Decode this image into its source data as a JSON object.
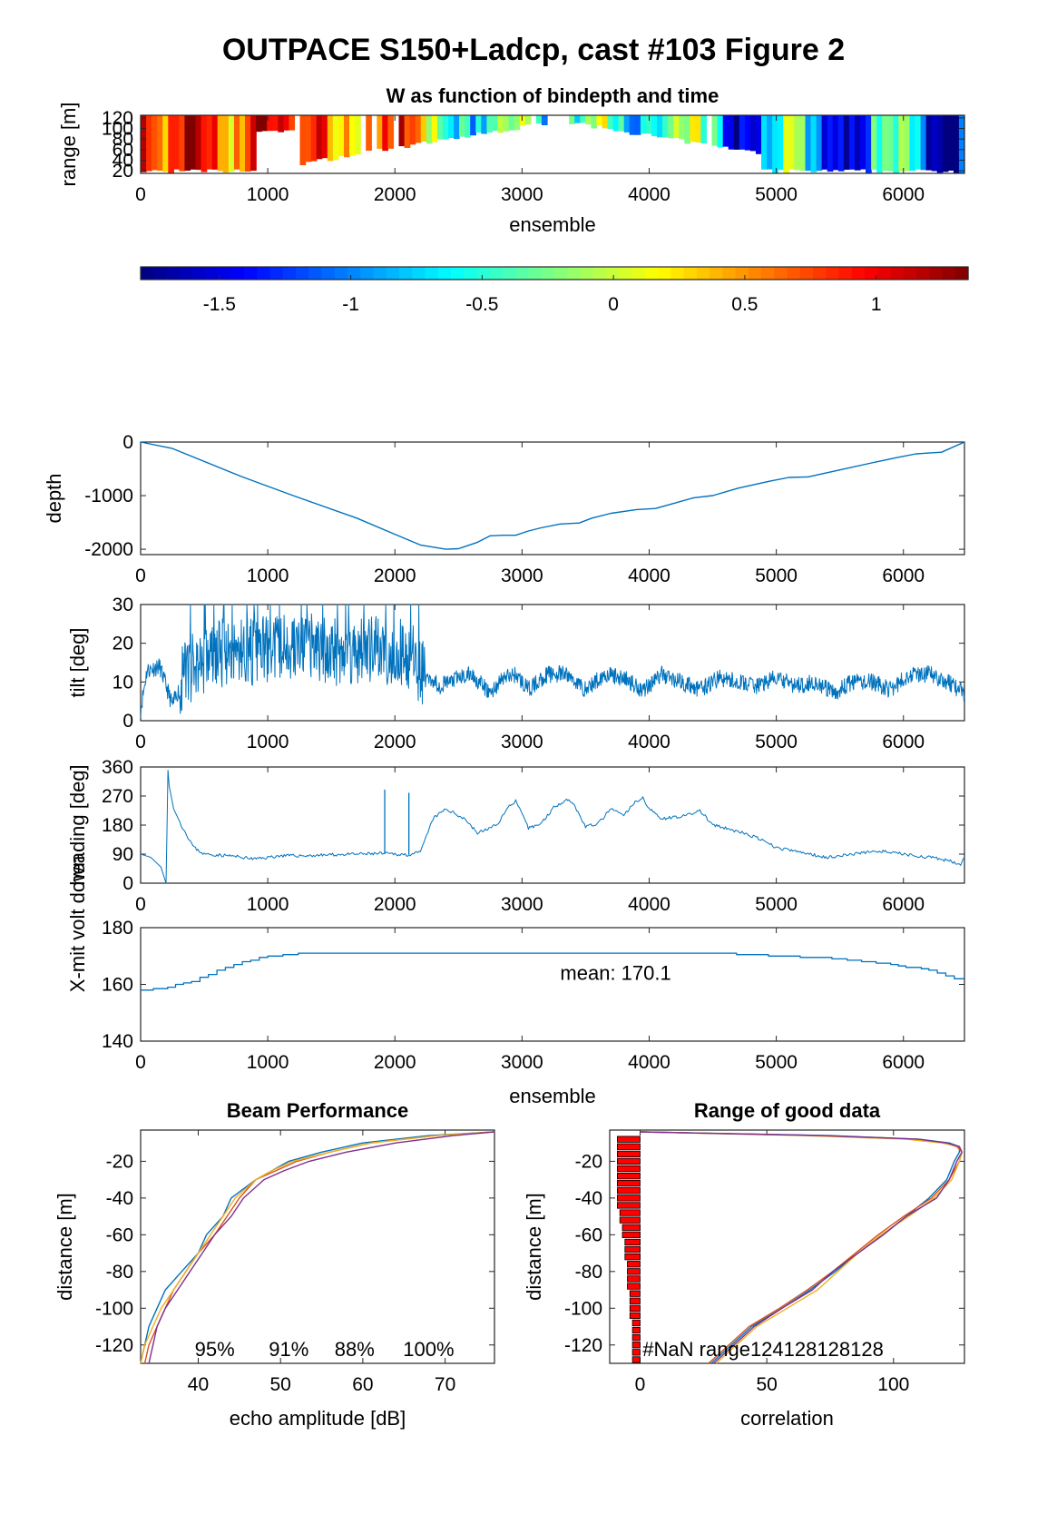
{
  "figure": {
    "title": "OUTPACE S150+Ladcp, cast #103 Figure 2"
  },
  "colors": {
    "line": "#0072BD",
    "beam1": "#0072BD",
    "beam2": "#D95319",
    "beam3": "#EDB120",
    "beam4": "#7E2F8E",
    "bar": "#FF0000"
  },
  "chart_data": [
    {
      "id": "w_image",
      "type": "heatmap",
      "title": "W as function of bindepth and time",
      "xlabel": "ensemble",
      "ylabel": "range [m]",
      "xlim": [
        0,
        6480
      ],
      "ylim": [
        15,
        125
      ],
      "xticks": [
        0,
        1000,
        2000,
        3000,
        4000,
        5000,
        6000
      ],
      "yticks": [
        20,
        40,
        60,
        80,
        100,
        120
      ],
      "colormap": "jet",
      "clim": [
        -1.8,
        1.35
      ],
      "note": "vertical stripes of W values; white where no data"
    },
    {
      "id": "colorbar",
      "type": "colorbar",
      "colormap": "jet",
      "range": [
        -1.8,
        1.35
      ],
      "ticks": [
        -1.5,
        -1,
        -0.5,
        0,
        0.5,
        1
      ],
      "tick_labels": [
        "-1.5",
        "-1",
        "-0.5",
        "0",
        "0.5",
        "1"
      ]
    },
    {
      "id": "depth",
      "type": "line",
      "ylabel": "depth",
      "xlim": [
        0,
        6480
      ],
      "ylim": [
        -2100,
        0
      ],
      "xticks": [
        0,
        1000,
        2000,
        3000,
        4000,
        5000,
        6000
      ],
      "yticks": [
        0,
        -1000,
        -2000
      ],
      "x": [
        0,
        250,
        800,
        1200,
        1700,
        2000,
        2200,
        2400,
        2500,
        2650,
        2750,
        2850,
        2950,
        3050,
        3150,
        3300,
        3450,
        3550,
        3700,
        3900,
        4050,
        4200,
        4350,
        4500,
        4700,
        4950,
        5100,
        5250,
        5500,
        5750,
        5950,
        6100,
        6300,
        6480
      ],
      "y": [
        0,
        -120,
        -650,
        -1000,
        -1420,
        -1720,
        -1920,
        -2000,
        -1990,
        -1870,
        -1750,
        -1740,
        -1740,
        -1660,
        -1600,
        -1530,
        -1510,
        -1420,
        -1330,
        -1260,
        -1240,
        -1140,
        -1040,
        -1000,
        -860,
        -730,
        -660,
        -650,
        -520,
        -390,
        -290,
        -220,
        -190,
        0
      ]
    },
    {
      "id": "tilt",
      "type": "line",
      "ylabel": "tilt [deg]",
      "xlim": [
        0,
        6480
      ],
      "ylim": [
        0,
        30
      ],
      "xticks": [
        0,
        1000,
        2000,
        3000,
        4000,
        5000,
        6000
      ],
      "yticks": [
        0,
        10,
        20,
        30
      ],
      "note": "noisy series, clipped at 30 between ensembles ~300 and ~2200",
      "x": [
        0,
        50,
        150,
        250,
        350,
        500,
        700,
        900,
        1100,
        1300,
        1500,
        1700,
        1900,
        2100,
        2250,
        2350,
        2500,
        2600,
        2750,
        2850,
        2950,
        3050,
        3200,
        3350,
        3500,
        3650,
        3800,
        3950,
        4100,
        4250,
        4400,
        4550,
        4700,
        4850,
        5000,
        5150,
        5300,
        5450,
        5600,
        5750,
        5900,
        6050,
        6200,
        6350,
        6480
      ],
      "y": [
        3,
        13,
        14,
        4,
        12,
        16,
        18,
        18,
        19,
        19,
        18,
        18,
        18,
        17,
        12,
        9,
        11,
        12,
        7,
        11,
        12,
        8,
        12,
        12,
        8,
        12,
        11,
        8,
        12,
        10,
        8,
        11,
        10,
        9,
        11,
        9,
        10,
        7,
        10,
        10,
        8,
        12,
        12,
        10,
        7
      ]
    },
    {
      "id": "heading",
      "type": "line",
      "ylabel": "heading [deg]",
      "xlim": [
        0,
        6480
      ],
      "ylim": [
        0,
        360
      ],
      "xticks": [
        0,
        1000,
        2000,
        3000,
        4000,
        5000,
        6000
      ],
      "yticks": [
        0,
        90,
        180,
        270,
        360
      ],
      "x": [
        0,
        80,
        160,
        200,
        215,
        225,
        260,
        320,
        420,
        500,
        700,
        900,
        1100,
        1300,
        1500,
        1700,
        1900,
        2100,
        2200,
        2300,
        2400,
        2550,
        2650,
        2800,
        2900,
        2950,
        3050,
        3150,
        3250,
        3350,
        3400,
        3500,
        3600,
        3700,
        3800,
        3900,
        3950,
        4000,
        4100,
        4300,
        4400,
        4500,
        4700,
        4850,
        5000,
        5200,
        5400,
        5600,
        5800,
        6000,
        6200,
        6350,
        6450,
        6480
      ],
      "y": [
        90,
        80,
        50,
        0,
        350,
        300,
        230,
        180,
        110,
        90,
        85,
        75,
        85,
        85,
        88,
        90,
        92,
        88,
        95,
        200,
        230,
        200,
        155,
        180,
        240,
        255,
        170,
        185,
        235,
        260,
        250,
        175,
        185,
        230,
        210,
        255,
        265,
        230,
        200,
        210,
        225,
        180,
        160,
        140,
        110,
        95,
        80,
        90,
        100,
        90,
        80,
        70,
        60,
        80
      ]
    },
    {
      "id": "xmit_voltage",
      "type": "line",
      "xlabel": "ensemble",
      "ylabel": "X-mit volt down",
      "xlim": [
        0,
        6480
      ],
      "ylim": [
        140,
        180
      ],
      "xticks": [
        0,
        1000,
        2000,
        3000,
        4000,
        5000,
        6000
      ],
      "yticks": [
        140,
        160,
        180
      ],
      "annotation": "mean: 170.1",
      "x": [
        0,
        150,
        400,
        600,
        800,
        1000,
        1300,
        2200,
        4500,
        5000,
        5500,
        5900,
        6200,
        6400,
        6480
      ],
      "y": [
        158,
        158.5,
        161,
        165,
        168,
        170,
        171,
        171,
        171,
        170,
        169,
        167,
        165,
        162,
        160
      ]
    },
    {
      "id": "beam_performance",
      "type": "line",
      "title": "Beam Performance",
      "xlabel": "echo amplitude [dB]",
      "ylabel": "distance [m]",
      "xlim": [
        33,
        76
      ],
      "ylim": [
        -130,
        -3
      ],
      "xticks": [
        40,
        50,
        60,
        70
      ],
      "yticks": [
        -20,
        -40,
        -60,
        -80,
        -100,
        -120
      ],
      "percent_labels": [
        "95%",
        "91%",
        "88%",
        "100%"
      ],
      "y": [
        -4,
        -6,
        -10,
        -15,
        -20,
        -25,
        -30,
        -40,
        -50,
        -60,
        -70,
        -80,
        -90,
        -100,
        -110,
        -120,
        -130
      ],
      "series": [
        {
          "values": [
            76,
            68,
            60,
            55,
            51,
            49,
            47,
            44,
            43,
            41,
            40,
            38,
            36,
            35,
            34,
            33.5,
            33
          ]
        },
        {
          "values": [
            76,
            69,
            61,
            56,
            52,
            49.5,
            47,
            45,
            43.5,
            42,
            40,
            38.5,
            37,
            36,
            35,
            34,
            33.5
          ]
        },
        {
          "values": [
            76,
            69,
            61,
            56,
            51.5,
            49,
            47,
            44.5,
            43,
            41.5,
            40,
            38.5,
            37,
            35.5,
            34.5,
            33.5,
            33
          ]
        },
        {
          "values": [
            76,
            71,
            64,
            58,
            53.5,
            50.5,
            48,
            45.5,
            44,
            42,
            40.5,
            39,
            37.5,
            36,
            35,
            34.5,
            34
          ]
        }
      ]
    },
    {
      "id": "range_good_data",
      "type": "line",
      "title": "Range of good data",
      "xlabel": "correlation",
      "ylabel": "distance [m]",
      "xlim": [
        -12,
        128
      ],
      "ylim": [
        -130,
        -3
      ],
      "xticks": [
        0,
        50,
        100
      ],
      "yticks": [
        -20,
        -40,
        -60,
        -80,
        -100,
        -120
      ],
      "annotation_prefix": "#NaN range",
      "annotation_values": [
        "124",
        "128",
        "128",
        "128"
      ],
      "y": [
        -4,
        -6,
        -8,
        -10,
        -12,
        -15,
        -20,
        -30,
        -40,
        -50,
        -60,
        -70,
        -80,
        -90,
        -100,
        -110,
        -120,
        -130
      ],
      "series": [
        {
          "values": [
            0,
            75,
            110,
            122,
            126,
            126,
            124,
            121,
            114,
            105,
            96,
            86,
            77,
            67,
            56,
            44,
            36,
            28
          ]
        },
        {
          "values": [
            0,
            70,
            108,
            120,
            125,
            127,
            126,
            122,
            115,
            104,
            94,
            85,
            76,
            66,
            55,
            43,
            35,
            27
          ]
        },
        {
          "values": [
            0,
            65,
            105,
            119,
            126,
            127,
            126,
            123,
            116,
            106,
            95,
            86,
            78,
            70,
            58,
            46,
            38,
            30
          ]
        },
        {
          "values": [
            0,
            72,
            110,
            121,
            126,
            127,
            125,
            122,
            117,
            105,
            96,
            86,
            76,
            68,
            56,
            45,
            37,
            29
          ]
        }
      ],
      "bars_note": "red horizontal bars of #NaN counts near x=0",
      "bars": [
        {
          "y": -8,
          "value": -9
        },
        {
          "y": -12,
          "value": -9
        },
        {
          "y": -16,
          "value": -9
        },
        {
          "y": -20,
          "value": -9
        },
        {
          "y": -24,
          "value": -9
        },
        {
          "y": -28,
          "value": -9
        },
        {
          "y": -32,
          "value": -9
        },
        {
          "y": -36,
          "value": -9
        },
        {
          "y": -40,
          "value": -9
        },
        {
          "y": -44,
          "value": -9
        },
        {
          "y": -48,
          "value": -8
        },
        {
          "y": -52,
          "value": -8
        },
        {
          "y": -56,
          "value": -7
        },
        {
          "y": -60,
          "value": -7
        },
        {
          "y": -64,
          "value": -6
        },
        {
          "y": -68,
          "value": -6
        },
        {
          "y": -72,
          "value": -6
        },
        {
          "y": -76,
          "value": -5
        },
        {
          "y": -80,
          "value": -5
        },
        {
          "y": -84,
          "value": -5
        },
        {
          "y": -88,
          "value": -5
        },
        {
          "y": -92,
          "value": -4
        },
        {
          "y": -96,
          "value": -4
        },
        {
          "y": -100,
          "value": -4
        },
        {
          "y": -104,
          "value": -4
        },
        {
          "y": -108,
          "value": -3
        },
        {
          "y": -112,
          "value": -3
        },
        {
          "y": -116,
          "value": -3
        },
        {
          "y": -120,
          "value": -3
        },
        {
          "y": -124,
          "value": -3
        },
        {
          "y": -128,
          "value": -3
        }
      ]
    }
  ]
}
